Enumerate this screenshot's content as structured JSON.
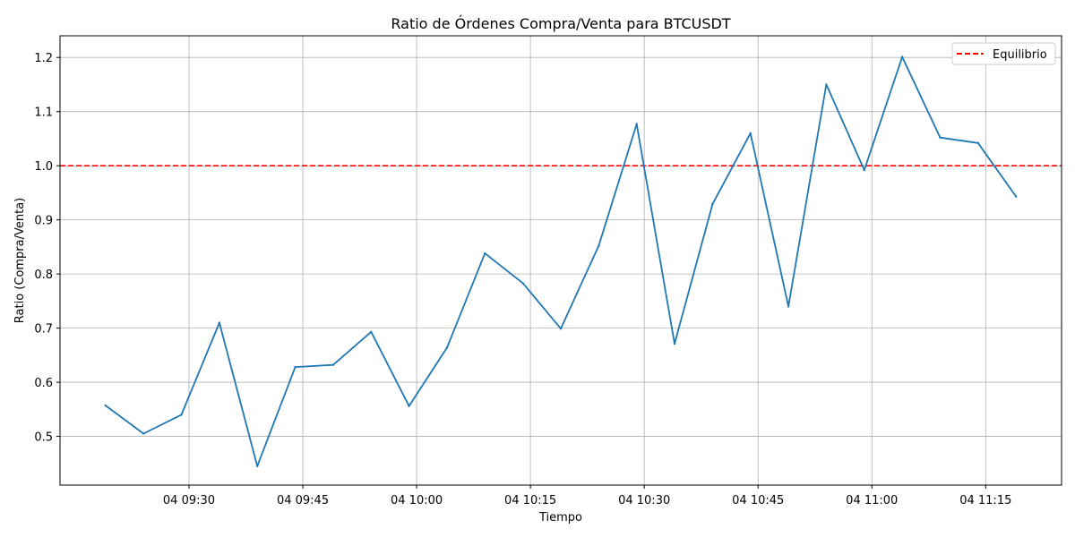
{
  "chart_data": {
    "type": "line",
    "title": "Ratio de Órdenes Compra/Venta para BTCUSDT",
    "xlabel": "Tiempo",
    "ylabel": "Ratio (Compra/Venta)",
    "x_tick_labels": [
      "04 09:30",
      "04 09:45",
      "04 10:00",
      "04 10:15",
      "04 10:30",
      "04 10:45",
      "04 11:00",
      "04 11:15"
    ],
    "y_tick_labels": [
      "0.5",
      "0.6",
      "0.7",
      "0.8",
      "0.9",
      "1.0",
      "1.1",
      "1.2"
    ],
    "ylim": [
      0.41,
      1.24
    ],
    "xlim": [
      "04 09:13",
      "04 11:25"
    ],
    "grid": true,
    "legend_position": "top-right",
    "colors": {
      "series": "#1f77b4",
      "reference": "#ff0000"
    },
    "x": [
      "04 09:19",
      "04 09:24",
      "04 09:29",
      "04 09:34",
      "04 09:39",
      "04 09:44",
      "04 09:49",
      "04 09:54",
      "04 09:59",
      "04 10:04",
      "04 10:09",
      "04 10:14",
      "04 10:19",
      "04 10:24",
      "04 10:29",
      "04 10:34",
      "04 10:39",
      "04 10:44",
      "04 10:49",
      "04 10:54",
      "04 10:59",
      "04 11:04",
      "04 11:09",
      "04 11:14",
      "04 11:19"
    ],
    "series": [
      {
        "values": [
          0.557,
          0.505,
          0.54,
          0.71,
          0.445,
          0.628,
          0.632,
          0.693,
          0.556,
          0.664,
          0.838,
          0.783,
          0.699,
          0.852,
          1.077,
          0.671,
          0.929,
          1.06,
          0.74,
          1.15,
          0.992,
          1.201,
          1.052,
          1.042,
          0.943
        ]
      }
    ],
    "reference_line": {
      "label": "Equilibrio",
      "y": 1.0,
      "style": "dashed"
    }
  }
}
